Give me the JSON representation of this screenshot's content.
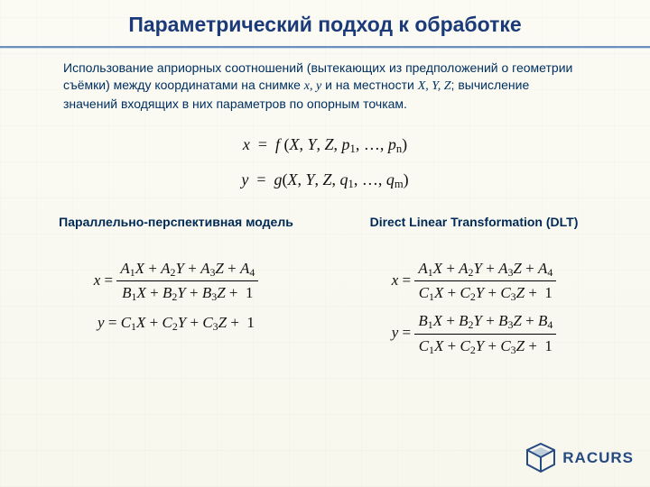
{
  "title": "Параметрический подход к обработке",
  "intro_html": "Использование  априорных  соотношений (вытекающих из предположений о геометрии съёмки) между координатами на снимке  <i>x, y</i>  и на местности <i>X, Y, Z</i>; вычисление значений входящих в них параметров по опорным точкам.",
  "main_eq": {
    "line1_html": "<i>x</i>&nbsp;&nbsp;=&nbsp;&nbsp;<i>f</i> (<i>X</i>, <i>Y</i>, <i>Z</i>, <i>p</i><sub>1</sub>, …, <i>p</i><sub>n</sub>)",
    "line2_html": "<i>y</i>&nbsp;&nbsp;=&nbsp;&nbsp;<i>g</i>(<i>X</i>, <i>Y</i>, <i>Z</i>, <i>q</i><sub>1</sub>, …, <i>q</i><sub>m</sub>)"
  },
  "left": {
    "head": "Параллельно-перспективная модель",
    "eq1": {
      "lhs": "<i>x</i> =",
      "num": "<i>A</i><sub>1</sub><i>X</i> + <i>A</i><sub>2</sub><i>Y</i> + <i>A</i><sub>3</sub><i>Z</i> + <i>A</i><sub>4</sub>",
      "den": "<i>B</i><sub>1</sub><i>X</i> + <i>B</i><sub>2</sub><i>Y</i> + <i>B</i><sub>3</sub><i>Z</i> +&nbsp; 1"
    },
    "eq2_html": "<i>y</i> = <i>C</i><sub>1</sub><i>X</i> + <i>C</i><sub>2</sub><i>Y</i> + <i>C</i><sub>3</sub><i>Z</i> +&nbsp; 1"
  },
  "right": {
    "head": "Direct Linear Transformation (DLT)",
    "eq1": {
      "lhs": "<i>x</i> =",
      "num": "<i>A</i><sub>1</sub><i>X</i> + <i>A</i><sub>2</sub><i>Y</i> + <i>A</i><sub>3</sub><i>Z</i> + <i>A</i><sub>4</sub>",
      "den": "<i>C</i><sub>1</sub><i>X</i> + <i>C</i><sub>2</sub><i>Y</i> + <i>C</i><sub>3</sub><i>Z</i> +&nbsp; 1"
    },
    "eq2": {
      "lhs": "<i>y</i> =",
      "num": "<i>B</i><sub>1</sub><i>X</i> + <i>B</i><sub>2</sub><i>Y</i> + <i>B</i><sub>3</sub><i>Z</i> + <i>B</i><sub>4</sub>",
      "den": "<i>C</i><sub>1</sub><i>X</i> + <i>C</i><sub>2</sub><i>Y</i> + <i>C</i><sub>3</sub><i>Z</i> +&nbsp; 1"
    }
  },
  "logo": {
    "text": "RACURS",
    "color_dark": "#264a82",
    "color_light": "#8aa5c8"
  }
}
